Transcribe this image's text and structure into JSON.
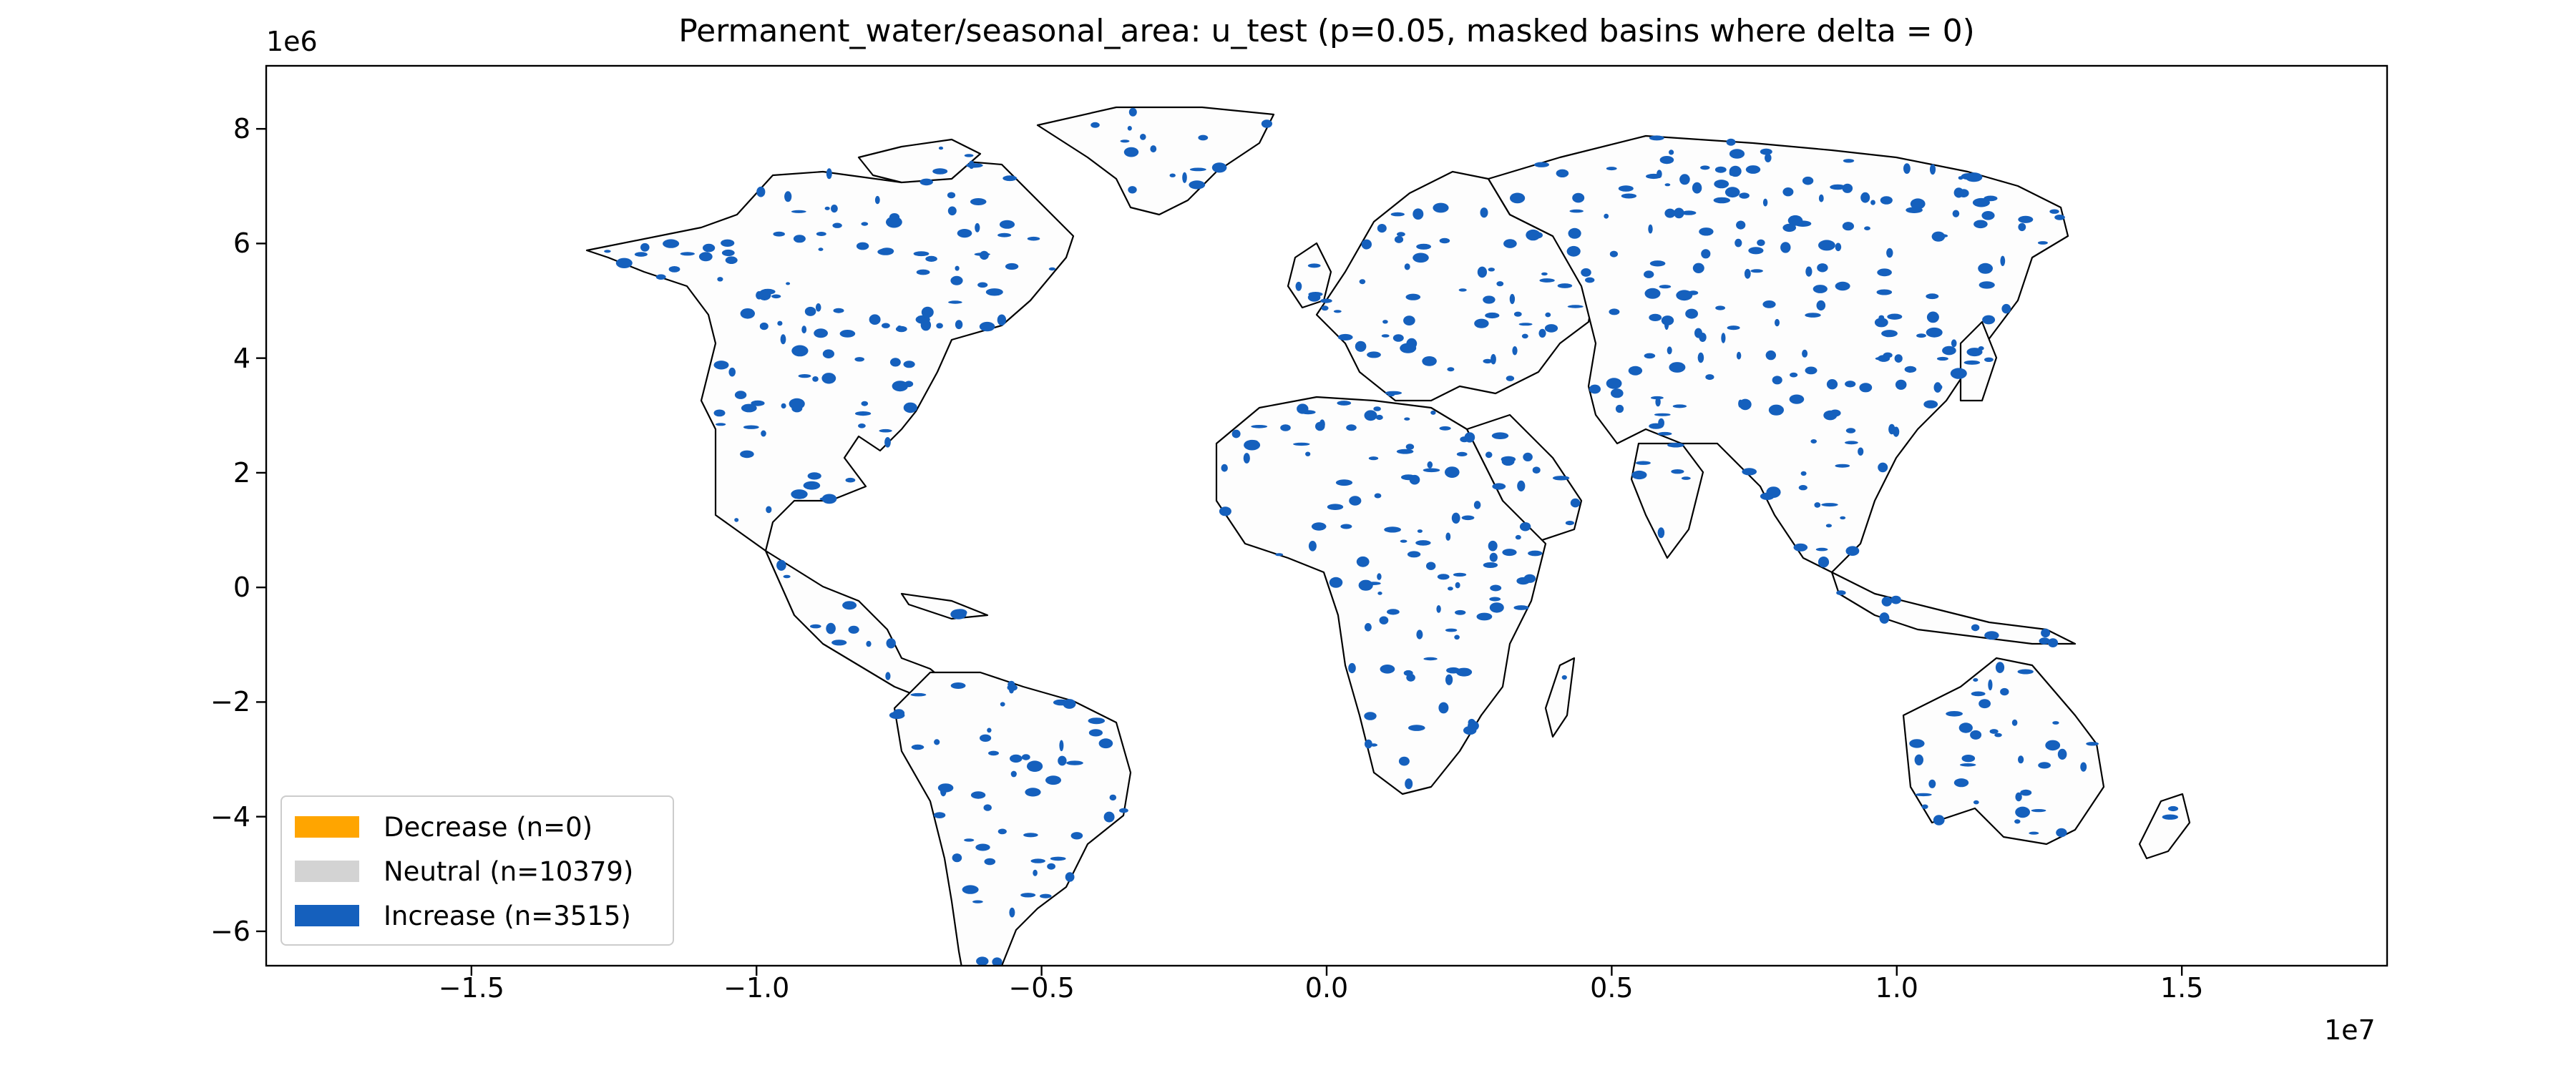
{
  "figure": {
    "title": "Permanent_water/seasonal_area: u_test (p=0.05, masked basins where delta = 0)",
    "y_offset": "1e6",
    "x_offset": "1e7"
  },
  "chart_data": {
    "type": "map",
    "title": "Permanent_water/seasonal_area: u_test (p=0.05, masked basins where delta = 0)",
    "xlim": [
      -18600000.0,
      18600000.0
    ],
    "ylim": [
      -6600000.0,
      9100000.0
    ],
    "x_ticks": [
      -1.5,
      -1.0,
      -0.5,
      0.0,
      0.5,
      1.0,
      1.5
    ],
    "x_tick_labels": [
      "−1.5",
      "−1.0",
      "−0.5",
      "0.0",
      "0.5",
      "1.0",
      "1.5"
    ],
    "y_ticks": [
      -6,
      -4,
      -2,
      0,
      2,
      4,
      6,
      8
    ],
    "y_tick_labels": [
      "−6",
      "−4",
      "−2",
      "0",
      "2",
      "4",
      "6",
      "8"
    ],
    "legend_placement": "lower-left",
    "categories": [
      {
        "label": "Decrease (n=0)",
        "count": 0,
        "color": "#ffa500"
      },
      {
        "label": "Neutral (n=10379)",
        "count": 10379,
        "color": "#d3d3d3"
      },
      {
        "label": "Increase (n=3515)",
        "count": 3515,
        "color": "#1560bd"
      }
    ]
  }
}
